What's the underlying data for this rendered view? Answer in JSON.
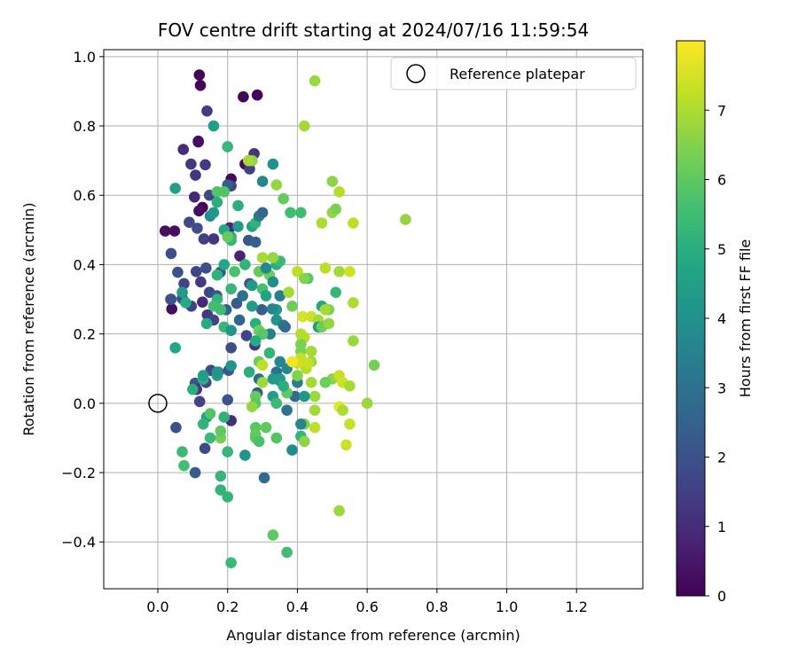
{
  "chart_data": {
    "type": "scatter",
    "title": "FOV centre drift starting at 2024/07/16 11:59:54",
    "xlabel": "Angular distance from reference (arcmin)",
    "ylabel": "Rotation from reference (arcmin)",
    "xlim": [
      -0.155,
      1.39
    ],
    "ylim": [
      -0.535,
      1.02
    ],
    "xticks": [
      0.0,
      0.2,
      0.4,
      0.6,
      0.8,
      1.0,
      1.2
    ],
    "yticks": [
      -0.4,
      -0.2,
      0.0,
      0.2,
      0.4,
      0.6,
      0.8,
      1.0
    ],
    "xtick_labels": [
      "0.0",
      "0.2",
      "0.4",
      "0.6",
      "0.8",
      "1.0",
      "1.2"
    ],
    "ytick_labels": [
      "−0.4",
      "−0.2",
      "0.0",
      "0.2",
      "0.4",
      "0.6",
      "0.8",
      "1.0"
    ],
    "grid": true,
    "legend": {
      "position": "upper right",
      "entries": [
        "Reference platepar"
      ]
    },
    "reference_point": {
      "x": 0.0,
      "y": 0.0
    },
    "colorbar": {
      "label": "Hours from first FF file",
      "colormap": "viridis",
      "min": 0,
      "max": 8,
      "ticks": [
        0,
        1,
        2,
        3,
        4,
        5,
        6,
        7
      ],
      "tick_labels": [
        "0",
        "1",
        "2",
        "3",
        "4",
        "5",
        "6",
        "7"
      ]
    },
    "points": [
      [
        0.119,
        0.947,
        0.1
      ],
      [
        0.122,
        0.917,
        0.1
      ],
      [
        0.245,
        0.884,
        0.1
      ],
      [
        0.285,
        0.889,
        0.1
      ],
      [
        0.116,
        0.754,
        0.1
      ],
      [
        0.116,
        0.756,
        0.3
      ],
      [
        0.21,
        0.647,
        0.2
      ],
      [
        0.25,
        0.69,
        0.2
      ],
      [
        0.128,
        0.565,
        0.1
      ],
      [
        0.021,
        0.497,
        0.3
      ],
      [
        0.048,
        0.497,
        0.3
      ],
      [
        0.04,
        0.272,
        0.3
      ],
      [
        0.037,
        0.3,
        0.8
      ],
      [
        0.105,
        0.595,
        0.9
      ],
      [
        0.073,
        0.732,
        1.0
      ],
      [
        0.141,
        0.843,
        1.4
      ],
      [
        0.095,
        0.69,
        1.3
      ],
      [
        0.136,
        0.688,
        1.3
      ],
      [
        0.108,
        0.658,
        1.2
      ],
      [
        0.276,
        0.72,
        1.2
      ],
      [
        0.118,
        0.555,
        0.3
      ],
      [
        0.263,
        0.676,
        1.5
      ],
      [
        0.21,
        0.627,
        1.6
      ],
      [
        0.148,
        0.6,
        1.7
      ],
      [
        0.2,
        0.63,
        2.3
      ],
      [
        0.09,
        0.522,
        1.8
      ],
      [
        0.113,
        0.505,
        1.9
      ],
      [
        0.132,
        0.474,
        1.5
      ],
      [
        0.16,
        0.474,
        1.2
      ],
      [
        0.206,
        0.506,
        0.9
      ],
      [
        0.235,
        0.425,
        0.8
      ],
      [
        0.038,
        0.432,
        1.9
      ],
      [
        0.057,
        0.378,
        2.0
      ],
      [
        0.11,
        0.38,
        1.7
      ],
      [
        0.138,
        0.39,
        1.9
      ],
      [
        0.179,
        0.378,
        2.3
      ],
      [
        0.075,
        0.345,
        1.6
      ],
      [
        0.038,
        0.3,
        2.0
      ],
      [
        0.07,
        0.302,
        1.8
      ],
      [
        0.123,
        0.35,
        1.4
      ],
      [
        0.148,
        0.32,
        1.7
      ],
      [
        0.169,
        0.31,
        2.0
      ],
      [
        0.096,
        0.28,
        1.6
      ],
      [
        0.128,
        0.292,
        0.9
      ],
      [
        0.142,
        0.255,
        1.3
      ],
      [
        0.16,
        0.24,
        1.6
      ],
      [
        0.196,
        0.27,
        2.5
      ],
      [
        0.226,
        0.288,
        2.3
      ],
      [
        0.243,
        0.31,
        2.9
      ],
      [
        0.263,
        0.345,
        2.1
      ],
      [
        0.298,
        0.27,
        2.4
      ],
      [
        0.278,
        0.168,
        1.2
      ],
      [
        0.234,
        0.24,
        2.6
      ],
      [
        0.254,
        0.195,
        1.6
      ],
      [
        0.21,
        0.16,
        1.9
      ],
      [
        0.173,
        0.09,
        2.0
      ],
      [
        0.152,
        0.095,
        1.8
      ],
      [
        0.138,
        0.06,
        1.8
      ],
      [
        0.107,
        0.058,
        2.2
      ],
      [
        0.111,
        0.04,
        1.2
      ],
      [
        0.107,
        -0.2,
        2.3
      ],
      [
        0.052,
        -0.07,
        2.0
      ],
      [
        0.12,
        0.005,
        1.6
      ],
      [
        0.135,
        -0.13,
        1.8
      ],
      [
        0.2,
        0.01,
        2.0
      ],
      [
        0.21,
        -0.05,
        1.0
      ],
      [
        0.203,
        0.095,
        2.2
      ],
      [
        0.21,
        0.108,
        4.1
      ],
      [
        0.262,
        0.09,
        5.0
      ],
      [
        0.29,
        0.07,
        2.7
      ],
      [
        0.285,
        0.03,
        2.3
      ],
      [
        0.305,
        -0.215,
        2.8
      ],
      [
        0.34,
        0.09,
        3.0
      ],
      [
        0.35,
        0.12,
        3.6
      ],
      [
        0.37,
        0.1,
        3.7
      ],
      [
        0.37,
        -0.02,
        3.0
      ],
      [
        0.393,
        0.02,
        2.8
      ],
      [
        0.385,
        -0.135,
        3.8
      ],
      [
        0.41,
        -0.095,
        5.2
      ],
      [
        0.4,
        0.06,
        3.4
      ],
      [
        0.41,
        0.15,
        6.4
      ],
      [
        0.4,
        0.08,
        6.5
      ],
      [
        0.32,
        0.145,
        5.2
      ],
      [
        0.33,
        0.02,
        4.4
      ],
      [
        0.35,
        0.065,
        4.0
      ],
      [
        0.322,
        0.2,
        3.5
      ],
      [
        0.34,
        0.24,
        4.1
      ],
      [
        0.36,
        0.225,
        3.2
      ],
      [
        0.34,
        0.27,
        4.3
      ],
      [
        0.328,
        0.272,
        3.6
      ],
      [
        0.3,
        0.2,
        2.5
      ],
      [
        0.27,
        0.34,
        4.3
      ],
      [
        0.25,
        0.4,
        5.2
      ],
      [
        0.26,
        0.47,
        2.2
      ],
      [
        0.28,
        0.465,
        2.4
      ],
      [
        0.3,
        0.33,
        5.6
      ],
      [
        0.3,
        0.42,
        6.9
      ],
      [
        0.34,
        0.4,
        5.0
      ],
      [
        0.35,
        0.41,
        5.4
      ],
      [
        0.33,
        0.42,
        6.7
      ],
      [
        0.32,
        0.37,
        6.2
      ],
      [
        0.33,
        0.35,
        3.9
      ],
      [
        0.35,
        0.31,
        3.4
      ],
      [
        0.365,
        0.22,
        2.9
      ],
      [
        0.375,
        0.32,
        6.9
      ],
      [
        0.385,
        0.28,
        6.2
      ],
      [
        0.41,
        0.2,
        7.1
      ],
      [
        0.415,
        0.25,
        7.5
      ],
      [
        0.42,
        0.19,
        7.1
      ],
      [
        0.41,
        0.17,
        6.4
      ],
      [
        0.44,
        0.12,
        6.8
      ],
      [
        0.44,
        0.15,
        6.9
      ],
      [
        0.425,
        0.1,
        7.1
      ],
      [
        0.43,
        0.115,
        7.3
      ],
      [
        0.41,
        0.13,
        7.3
      ],
      [
        0.4,
        0.115,
        7.4
      ],
      [
        0.385,
        0.12,
        7.9
      ],
      [
        0.44,
        0.25,
        7.4
      ],
      [
        0.46,
        0.24,
        6.9
      ],
      [
        0.47,
        0.28,
        4.8
      ],
      [
        0.46,
        0.22,
        4.3
      ],
      [
        0.47,
        0.22,
        6.2
      ],
      [
        0.49,
        0.27,
        6.4
      ],
      [
        0.48,
        0.27,
        6.9
      ],
      [
        0.49,
        0.23,
        6.7
      ],
      [
        0.43,
        0.36,
        5.8
      ],
      [
        0.4,
        0.38,
        7.2
      ],
      [
        0.42,
        0.36,
        6.5
      ],
      [
        0.48,
        0.39,
        7.2
      ],
      [
        0.51,
        0.32,
        5.3
      ],
      [
        0.52,
        0.38,
        6.9
      ],
      [
        0.55,
        0.38,
        7.4
      ],
      [
        0.56,
        0.29,
        7.0
      ],
      [
        0.56,
        0.18,
        6.8
      ],
      [
        0.5,
        0.07,
        6.6
      ],
      [
        0.52,
        0.08,
        7.3
      ],
      [
        0.53,
        0.06,
        7.4
      ],
      [
        0.55,
        0.05,
        6.9
      ],
      [
        0.52,
        -0.01,
        7.7
      ],
      [
        0.53,
        -0.02,
        7.0
      ],
      [
        0.55,
        -0.06,
        7.3
      ],
      [
        0.54,
        -0.12,
        7.4
      ],
      [
        0.6,
        0.0,
        6.8
      ],
      [
        0.62,
        0.11,
        6.3
      ],
      [
        0.48,
        0.06,
        6.2
      ],
      [
        0.44,
        0.06,
        6.9
      ],
      [
        0.45,
        0.02,
        6.8
      ],
      [
        0.45,
        -0.02,
        6.9
      ],
      [
        0.45,
        -0.07,
        7.2
      ],
      [
        0.42,
        -0.06,
        6.5
      ],
      [
        0.42,
        -0.11,
        6.6
      ],
      [
        0.41,
        -0.06,
        3.6
      ],
      [
        0.42,
        0.02,
        4.2
      ],
      [
        0.52,
        -0.31,
        6.8
      ],
      [
        0.33,
        -0.38,
        6.0
      ],
      [
        0.37,
        -0.43,
        5.5
      ],
      [
        0.21,
        -0.46,
        5.4
      ],
      [
        0.2,
        -0.27,
        5.2
      ],
      [
        0.18,
        -0.25,
        5.2
      ],
      [
        0.18,
        -0.21,
        5.3
      ],
      [
        0.2,
        -0.14,
        5.3
      ],
      [
        0.18,
        -0.1,
        6.3
      ],
      [
        0.15,
        -0.1,
        5.4
      ],
      [
        0.14,
        -0.04,
        4.5
      ],
      [
        0.15,
        -0.03,
        5.8
      ],
      [
        0.13,
        -0.06,
        5.2
      ],
      [
        0.1,
        0.04,
        5.0
      ],
      [
        0.13,
        0.07,
        5.1
      ],
      [
        0.075,
        -0.18,
        5.6
      ],
      [
        0.07,
        -0.14,
        5.4
      ],
      [
        0.05,
        0.16,
        4.8
      ],
      [
        0.05,
        0.62,
        4.5
      ],
      [
        0.16,
        0.8,
        4.5
      ],
      [
        0.2,
        0.74,
        5.3
      ],
      [
        0.17,
        0.61,
        5.8
      ],
      [
        0.17,
        0.58,
        5.0
      ],
      [
        0.15,
        0.54,
        3.7
      ],
      [
        0.16,
        0.55,
        4.2
      ],
      [
        0.19,
        0.5,
        4.8
      ],
      [
        0.21,
        0.48,
        5.0
      ],
      [
        0.21,
        0.47,
        5.3
      ],
      [
        0.23,
        0.51,
        4.3
      ],
      [
        0.23,
        0.57,
        5.0
      ],
      [
        0.27,
        0.51,
        4.6
      ],
      [
        0.28,
        0.52,
        5.2
      ],
      [
        0.29,
        0.54,
        3.2
      ],
      [
        0.3,
        0.55,
        2.7
      ],
      [
        0.3,
        0.64,
        3.6
      ],
      [
        0.33,
        0.69,
        4.0
      ],
      [
        0.34,
        0.63,
        6.7
      ],
      [
        0.36,
        0.59,
        6.1
      ],
      [
        0.38,
        0.55,
        5.5
      ],
      [
        0.41,
        0.55,
        5.5
      ],
      [
        0.42,
        0.8,
        6.9
      ],
      [
        0.45,
        0.93,
        6.8
      ],
      [
        0.47,
        0.52,
        7.0
      ],
      [
        0.5,
        0.55,
        6.7
      ],
      [
        0.5,
        0.64,
        6.6
      ],
      [
        0.52,
        0.61,
        7.1
      ],
      [
        0.51,
        0.56,
        6.4
      ],
      [
        0.56,
        0.52,
        7.2
      ],
      [
        0.71,
        0.53,
        6.7
      ],
      [
        0.27,
        0.7,
        6.6
      ],
      [
        0.26,
        0.7,
        6.9
      ],
      [
        0.19,
        0.61,
        5.8
      ],
      [
        0.2,
        0.48,
        6.1
      ],
      [
        0.17,
        0.37,
        5.1
      ],
      [
        0.22,
        0.38,
        5.7
      ],
      [
        0.19,
        0.4,
        4.8
      ],
      [
        0.21,
        0.33,
        5.3
      ],
      [
        0.17,
        0.3,
        5.2
      ],
      [
        0.16,
        0.28,
        5.5
      ],
      [
        0.18,
        0.27,
        5.5
      ],
      [
        0.19,
        0.22,
        5.3
      ],
      [
        0.21,
        0.21,
        4.1
      ],
      [
        0.14,
        0.23,
        4.9
      ],
      [
        0.08,
        0.29,
        4.9
      ],
      [
        0.07,
        0.32,
        4.3
      ],
      [
        0.27,
        0.28,
        4.4
      ],
      [
        0.29,
        0.38,
        6.1
      ],
      [
        0.31,
        0.39,
        3.7
      ],
      [
        0.31,
        0.31,
        4.6
      ],
      [
        0.28,
        0.23,
        5.0
      ],
      [
        0.29,
        0.21,
        6.2
      ],
      [
        0.3,
        0.2,
        5.9
      ],
      [
        0.28,
        0.18,
        4.9
      ],
      [
        0.29,
        0.12,
        6.2
      ],
      [
        0.3,
        0.11,
        7.2
      ],
      [
        0.3,
        0.06,
        6.8
      ],
      [
        0.28,
        0.02,
        6.1
      ],
      [
        0.28,
        0.0,
        5.9
      ],
      [
        0.27,
        -0.01,
        6.7
      ],
      [
        0.19,
        -0.04,
        5.1
      ],
      [
        0.18,
        -0.08,
        6.0
      ],
      [
        0.28,
        -0.07,
        5.9
      ],
      [
        0.28,
        -0.09,
        6.1
      ],
      [
        0.28,
        -0.1,
        6.0
      ],
      [
        0.29,
        -0.11,
        5.7
      ],
      [
        0.34,
        -0.1,
        5.8
      ],
      [
        0.31,
        -0.07,
        6.0
      ],
      [
        0.25,
        -0.15,
        4.1
      ],
      [
        0.17,
        0.08,
        4.5
      ],
      [
        0.17,
        0.09,
        4.1
      ],
      [
        0.13,
        0.08,
        4.4
      ],
      [
        0.33,
        0.07,
        4.3
      ],
      [
        0.35,
        0.07,
        4.4
      ],
      [
        0.34,
        0.0,
        5.4
      ],
      [
        0.37,
        0.03,
        6.0
      ],
      [
        0.36,
        0.05,
        5.0
      ]
    ]
  }
}
